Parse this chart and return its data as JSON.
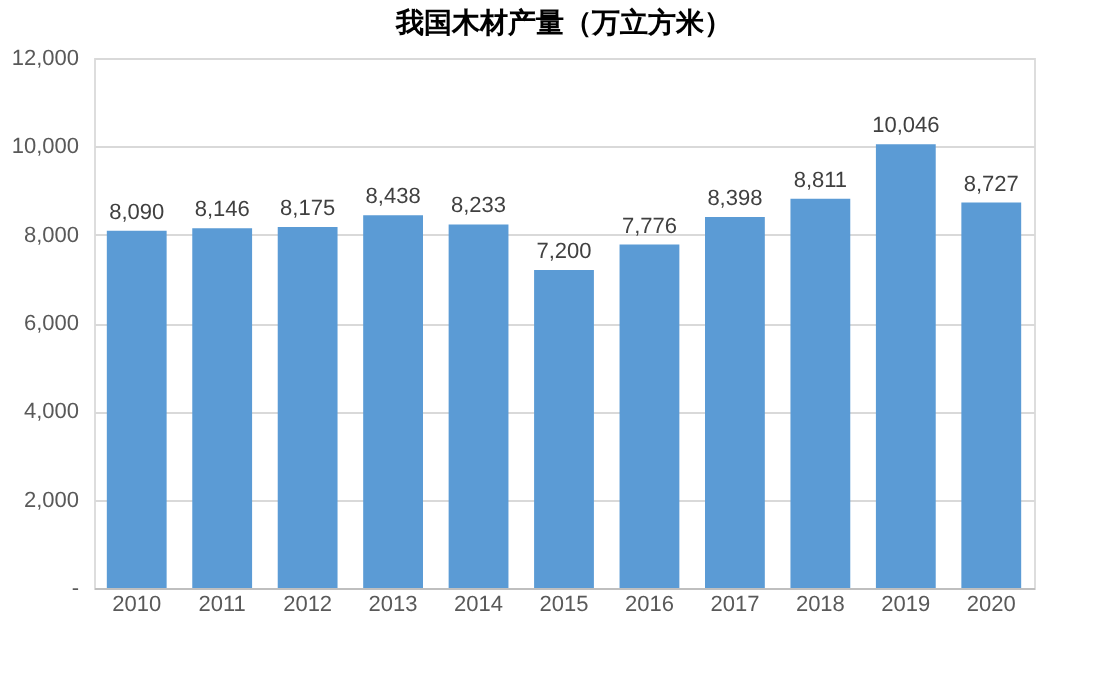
{
  "chart_data": {
    "type": "bar",
    "title": "我国木材产量（万立方米）",
    "categories": [
      "2010",
      "2011",
      "2012",
      "2013",
      "2014",
      "2015",
      "2016",
      "2017",
      "2018",
      "2019",
      "2020"
    ],
    "values": [
      8090,
      8146,
      8175,
      8438,
      8233,
      7200,
      7776,
      8398,
      8811,
      10046,
      8727
    ],
    "color": "#5b9bd5",
    "ylim": [
      0,
      12000
    ],
    "yticks": [
      {
        "value": 0,
        "label": "-"
      },
      {
        "value": 2000,
        "label": "2,000"
      },
      {
        "value": 4000,
        "label": "4,000"
      },
      {
        "value": 6000,
        "label": "6,000"
      },
      {
        "value": 8000,
        "label": "8,000"
      },
      {
        "value": 10000,
        "label": "10,000"
      },
      {
        "value": 12000,
        "label": "12,000"
      }
    ],
    "value_labels": [
      "8,090",
      "8,146",
      "8,175",
      "8,438",
      "8,233",
      "7,200",
      "7,776",
      "8,398",
      "8,811",
      "10,046",
      "8,727"
    ],
    "grid": "y"
  }
}
